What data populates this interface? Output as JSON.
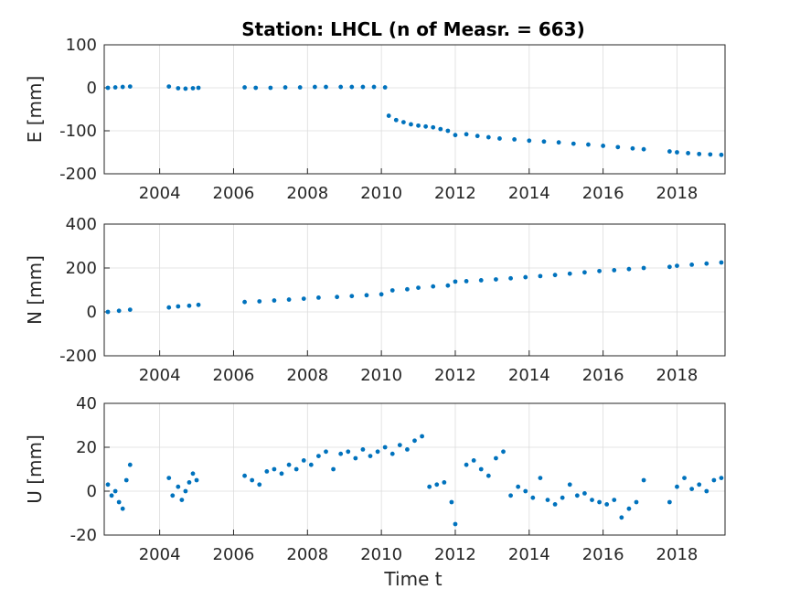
{
  "title": "Station: LHCL (n of Measr. = 663)",
  "colors": {
    "marker": "#0072BD",
    "axis": "#262626",
    "grid": "#dcdcdc"
  },
  "chart_data": {
    "type": "scatter",
    "title": "Station: LHCL (n of Measr. = 663)",
    "xlabel": "Time t",
    "xlim": [
      2002.5,
      2019.3
    ],
    "xticks": [
      2004,
      2006,
      2008,
      2010,
      2012,
      2014,
      2016,
      2018
    ],
    "grid": true,
    "panels": [
      {
        "id": "E",
        "ylabel": "E [mm]",
        "ylim": [
          -200,
          100
        ],
        "yticks": [
          -200,
          -100,
          0,
          100
        ],
        "series": [
          {
            "x": [
              2002.6,
              2002.8,
              2003.0,
              2003.2,
              2004.25,
              2004.5,
              2004.7,
              2004.9,
              2005.05,
              2006.3,
              2006.6,
              2007.0,
              2007.4,
              2007.8,
              2008.2,
              2008.5,
              2008.9,
              2009.2,
              2009.5,
              2009.8,
              2010.1,
              2010.2,
              2010.4,
              2010.6,
              2010.8,
              2011.0,
              2011.2,
              2011.4,
              2011.6,
              2011.8,
              2012.0,
              2012.3,
              2012.6,
              2012.9,
              2013.2,
              2013.6,
              2014.0,
              2014.4,
              2014.8,
              2015.2,
              2015.6,
              2016.0,
              2016.4,
              2016.8,
              2017.1,
              2017.8,
              2018.0,
              2018.3,
              2018.6,
              2018.9,
              2019.2
            ],
            "y": [
              0,
              1,
              2,
              3,
              3,
              -1,
              -2,
              -1,
              0,
              1,
              0,
              0,
              1,
              1,
              2,
              2,
              2,
              2,
              2,
              2,
              1,
              -65,
              -75,
              -80,
              -85,
              -88,
              -90,
              -92,
              -96,
              -100,
              -110,
              -108,
              -112,
              -115,
              -118,
              -120,
              -123,
              -125,
              -127,
              -130,
              -132,
              -135,
              -138,
              -141,
              -143,
              -148,
              -150,
              -152,
              -154,
              -155,
              -156
            ]
          }
        ]
      },
      {
        "id": "N",
        "ylabel": "N [mm]",
        "ylim": [
          -200,
          400
        ],
        "yticks": [
          -200,
          0,
          200,
          400
        ],
        "series": [
          {
            "x": [
              2002.6,
              2002.9,
              2003.2,
              2004.25,
              2004.5,
              2004.8,
              2005.05,
              2006.3,
              2006.7,
              2007.1,
              2007.5,
              2007.9,
              2008.3,
              2008.8,
              2009.2,
              2009.6,
              2010.0,
              2010.3,
              2010.7,
              2011.0,
              2011.4,
              2011.8,
              2012.0,
              2012.3,
              2012.7,
              2013.1,
              2013.5,
              2013.9,
              2014.3,
              2014.7,
              2015.1,
              2015.5,
              2015.9,
              2016.3,
              2016.7,
              2017.1,
              2017.8,
              2018.0,
              2018.4,
              2018.8,
              2019.2
            ],
            "y": [
              0,
              5,
              10,
              20,
              25,
              28,
              32,
              45,
              48,
              52,
              56,
              60,
              65,
              68,
              72,
              76,
              80,
              98,
              103,
              110,
              116,
              120,
              138,
              140,
              144,
              148,
              153,
              158,
              163,
              168,
              174,
              180,
              186,
              190,
              195,
              200,
              205,
              210,
              215,
              220,
              225
            ]
          }
        ]
      },
      {
        "id": "U",
        "ylabel": "U [mm]",
        "ylim": [
          -20,
          40
        ],
        "yticks": [
          -20,
          0,
          20,
          40
        ],
        "series": [
          {
            "x": [
              2002.6,
              2002.7,
              2002.8,
              2002.9,
              2003.0,
              2003.1,
              2003.2,
              2004.25,
              2004.35,
              2004.5,
              2004.6,
              2004.7,
              2004.8,
              2004.9,
              2005.0,
              2006.3,
              2006.5,
              2006.7,
              2006.9,
              2007.1,
              2007.3,
              2007.5,
              2007.7,
              2007.9,
              2008.1,
              2008.3,
              2008.5,
              2008.7,
              2008.9,
              2009.1,
              2009.3,
              2009.5,
              2009.7,
              2009.9,
              2010.1,
              2010.3,
              2010.5,
              2010.7,
              2010.9,
              2011.1,
              2011.3,
              2011.5,
              2011.7,
              2011.9,
              2012.0,
              2012.3,
              2012.5,
              2012.7,
              2012.9,
              2013.1,
              2013.3,
              2013.5,
              2013.7,
              2013.9,
              2014.1,
              2014.3,
              2014.5,
              2014.7,
              2014.9,
              2015.1,
              2015.3,
              2015.5,
              2015.7,
              2015.9,
              2016.1,
              2016.3,
              2016.5,
              2016.7,
              2016.9,
              2017.1,
              2017.8,
              2018.0,
              2018.2,
              2018.4,
              2018.6,
              2018.8,
              2019.0,
              2019.2
            ],
            "y": [
              3,
              -2,
              0,
              -5,
              -8,
              5,
              12,
              6,
              -2,
              2,
              -4,
              0,
              4,
              8,
              5,
              7,
              5,
              3,
              9,
              10,
              8,
              12,
              10,
              14,
              12,
              16,
              18,
              10,
              17,
              18,
              15,
              19,
              16,
              18,
              20,
              17,
              21,
              19,
              23,
              25,
              2,
              3,
              4,
              -5,
              -15,
              12,
              14,
              10,
              7,
              15,
              18,
              -2,
              2,
              0,
              -3,
              6,
              -4,
              -6,
              -3,
              3,
              -2,
              -1,
              -4,
              -5,
              -6,
              -4,
              -12,
              -8,
              -5,
              5,
              -5,
              2,
              6,
              1,
              3,
              0,
              5,
              6
            ]
          }
        ]
      }
    ]
  }
}
